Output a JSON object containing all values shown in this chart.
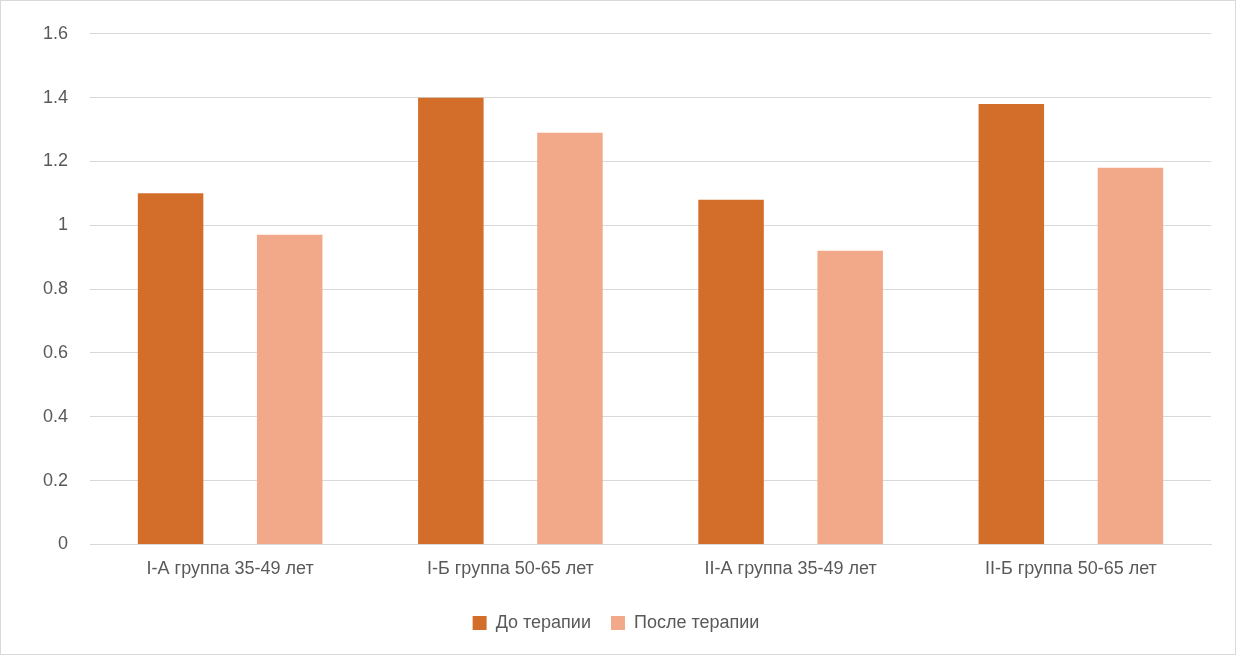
{
  "chart_data": {
    "type": "bar",
    "categories": [
      "I-А группа 35-49 лет",
      "I-Б группа 50-65 лет",
      "II-А группа 35-49 лет",
      "II-Б группа 50-65 лет"
    ],
    "series": [
      {
        "name": "До терапии",
        "color": "#d36e2a",
        "values": [
          1.1,
          1.4,
          1.08,
          1.38
        ]
      },
      {
        "name": "После терапии",
        "color": "#f1a98a",
        "values": [
          0.97,
          1.29,
          0.92,
          1.18
        ]
      }
    ],
    "ylim": [
      0,
      1.6
    ],
    "yticks": [
      0,
      0.2,
      0.4,
      0.6,
      0.8,
      1,
      1.2,
      1.4,
      1.6
    ],
    "grid": "y",
    "legend": "bottom"
  }
}
